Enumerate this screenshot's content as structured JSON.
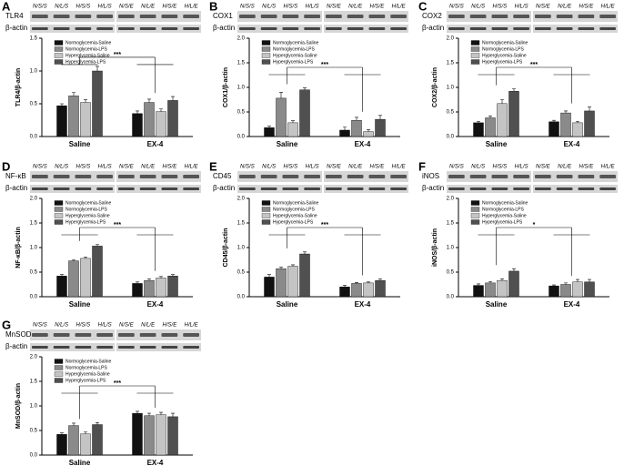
{
  "chart_data": [
    {
      "type": "bar",
      "label": "A",
      "blot_label": "TLR4",
      "loading_label": "β-actin",
      "lanes": [
        "N/S/S",
        "N/L/S",
        "H/S/S",
        "H/L/S",
        "N/S/E",
        "N/L/E",
        "H/S/E",
        "H/L/E"
      ],
      "y_label": "TLR4/β-actin",
      "categories": [
        "Saline",
        "EX-4"
      ],
      "ylim": [
        0,
        1.5
      ],
      "yticks": [
        {
          "value": 0,
          "label": "0.0"
        },
        {
          "value": 0.5,
          "label": "0.5"
        },
        {
          "value": 1,
          "label": "1.0"
        },
        {
          "value": 1.5,
          "label": "1.5"
        }
      ],
      "annotation": "***",
      "series": [
        {
          "name": "Normoglycemia-Saline",
          "color": "#111111",
          "values": [
            0.47,
            0.35
          ],
          "errors": [
            0.03,
            0.04
          ]
        },
        {
          "name": "Normoglycemia-LPS",
          "color": "#8a8a8a",
          "values": [
            0.62,
            0.52
          ],
          "errors": [
            0.05,
            0.05
          ]
        },
        {
          "name": "Hyperglycemia-Saline",
          "color": "#c4c4c4",
          "values": [
            0.52,
            0.38
          ],
          "errors": [
            0.04,
            0.04
          ]
        },
        {
          "name": "Hyperglycemia-LPS",
          "color": "#505050",
          "values": [
            1.0,
            0.55
          ],
          "errors": [
            0.07,
            0.06
          ]
        }
      ]
    },
    {
      "type": "bar",
      "label": "B",
      "blot_label": "COX1",
      "loading_label": "β-actin",
      "lanes": [
        "N/S/S",
        "N/L/S",
        "H/S/S",
        "H/L/S",
        "N/S/E",
        "N/L/E",
        "H/S/E",
        "H/L/E"
      ],
      "y_label": "COX1/β-actin",
      "categories": [
        "Saline",
        "EX-4"
      ],
      "ylim": [
        0,
        2
      ],
      "yticks": [
        {
          "value": 0,
          "label": "0.0"
        },
        {
          "value": 0.5,
          "label": "0.5"
        },
        {
          "value": 1,
          "label": "1.0"
        },
        {
          "value": 1.5,
          "label": "1.5"
        },
        {
          "value": 2,
          "label": "2.0"
        }
      ],
      "annotation": "***",
      "series": [
        {
          "name": "Normoglycemia-Saline",
          "color": "#111111",
          "values": [
            0.18,
            0.13
          ],
          "errors": [
            0.03,
            0.06
          ]
        },
        {
          "name": "Normoglycemia-LPS",
          "color": "#8a8a8a",
          "values": [
            0.78,
            0.33
          ],
          "errors": [
            0.12,
            0.06
          ]
        },
        {
          "name": "Hyperglycemia-Saline",
          "color": "#c4c4c4",
          "values": [
            0.28,
            0.1
          ],
          "errors": [
            0.04,
            0.04
          ]
        },
        {
          "name": "Hyperglycemia-LPS",
          "color": "#505050",
          "values": [
            0.95,
            0.35
          ],
          "errors": [
            0.04,
            0.08
          ]
        }
      ]
    },
    {
      "type": "bar",
      "label": "C",
      "blot_label": "COX2",
      "loading_label": "β-actin",
      "lanes": [
        "N/S/S",
        "N/L/S",
        "H/S/S",
        "H/L/S",
        "N/S/E",
        "N/L/E",
        "H/S/E",
        "H/L/E"
      ],
      "y_label": "COX2/β-actin",
      "categories": [
        "Saline",
        "EX-4"
      ],
      "ylim": [
        0,
        2
      ],
      "yticks": [
        {
          "value": 0,
          "label": "0.0"
        },
        {
          "value": 0.5,
          "label": "0.5"
        },
        {
          "value": 1,
          "label": "1.0"
        },
        {
          "value": 1.5,
          "label": "1.5"
        },
        {
          "value": 2,
          "label": "2.0"
        }
      ],
      "annotation": "***",
      "series": [
        {
          "name": "Normoglycemia-Saline",
          "color": "#111111",
          "values": [
            0.28,
            0.3
          ],
          "errors": [
            0.03,
            0.03
          ]
        },
        {
          "name": "Normoglycemia-LPS",
          "color": "#8a8a8a",
          "values": [
            0.38,
            0.48
          ],
          "errors": [
            0.04,
            0.04
          ]
        },
        {
          "name": "Hyperglycemia-Saline",
          "color": "#c4c4c4",
          "values": [
            0.67,
            0.28
          ],
          "errors": [
            0.08,
            0.03
          ]
        },
        {
          "name": "Hyperglycemia-LPS",
          "color": "#505050",
          "values": [
            0.92,
            0.52
          ],
          "errors": [
            0.05,
            0.08
          ]
        }
      ]
    },
    {
      "type": "bar",
      "label": "D",
      "blot_label": "NF-κB",
      "loading_label": "β-actin",
      "lanes": [
        "N/S/S",
        "N/L/S",
        "H/S/S",
        "H/L/S",
        "N/S/E",
        "N/L/E",
        "H/S/E",
        "H/L/E"
      ],
      "y_label": "NF-κB/β-actin",
      "categories": [
        "Saline",
        "EX-4"
      ],
      "ylim": [
        0,
        2
      ],
      "yticks": [
        {
          "value": 0,
          "label": "0.0"
        },
        {
          "value": 0.5,
          "label": "0.5"
        },
        {
          "value": 1,
          "label": "1.0"
        },
        {
          "value": 1.5,
          "label": "1.5"
        },
        {
          "value": 2,
          "label": "2.0"
        }
      ],
      "annotation": "***",
      "series": [
        {
          "name": "Normoglycemia-Saline",
          "color": "#111111",
          "values": [
            0.42,
            0.27
          ],
          "errors": [
            0.03,
            0.03
          ]
        },
        {
          "name": "Normoglycemia-LPS",
          "color": "#8a8a8a",
          "values": [
            0.73,
            0.33
          ],
          "errors": [
            0.02,
            0.03
          ]
        },
        {
          "name": "Hyperglycemia-Saline",
          "color": "#c4c4c4",
          "values": [
            0.78,
            0.38
          ],
          "errors": [
            0.03,
            0.03
          ]
        },
        {
          "name": "Hyperglycemia-LPS",
          "color": "#505050",
          "values": [
            1.03,
            0.42
          ],
          "errors": [
            0.03,
            0.03
          ]
        }
      ]
    },
    {
      "type": "bar",
      "label": "E",
      "blot_label": "CD45",
      "loading_label": "β-actin",
      "lanes": [
        "N/S/S",
        "N/L/S",
        "H/S/S",
        "H/L/S",
        "N/S/E",
        "N/L/E",
        "H/S/E",
        "H/L/E"
      ],
      "y_label": "CD45/β-actin",
      "categories": [
        "Saline",
        "EX-4"
      ],
      "ylim": [
        0,
        2
      ],
      "yticks": [
        {
          "value": 0,
          "label": "0.0"
        },
        {
          "value": 0.5,
          "label": "0.5"
        },
        {
          "value": 1,
          "label": "1.0"
        },
        {
          "value": 1.5,
          "label": "1.5"
        },
        {
          "value": 2,
          "label": "2.0"
        }
      ],
      "annotation": "***",
      "series": [
        {
          "name": "Normoglycemia-Saline",
          "color": "#111111",
          "values": [
            0.4,
            0.2
          ],
          "errors": [
            0.05,
            0.03
          ]
        },
        {
          "name": "Normoglycemia-LPS",
          "color": "#8a8a8a",
          "values": [
            0.57,
            0.27
          ],
          "errors": [
            0.03,
            0.02
          ]
        },
        {
          "name": "Hyperglycemia-Saline",
          "color": "#c4c4c4",
          "values": [
            0.62,
            0.28
          ],
          "errors": [
            0.03,
            0.02
          ]
        },
        {
          "name": "Hyperglycemia-LPS",
          "color": "#505050",
          "values": [
            0.87,
            0.33
          ],
          "errors": [
            0.04,
            0.03
          ]
        }
      ]
    },
    {
      "type": "bar",
      "label": "F",
      "blot_label": "iNOS",
      "loading_label": "β-actin",
      "lanes": [
        "N/S/S",
        "N/L/S",
        "H/S/S",
        "H/L/S",
        "N/S/E",
        "N/L/E",
        "H/S/E",
        "H/L/E"
      ],
      "y_label": "iNOS/β-actin",
      "categories": [
        "Saline",
        "EX-4"
      ],
      "ylim": [
        0,
        2
      ],
      "yticks": [
        {
          "value": 0,
          "label": "0.0"
        },
        {
          "value": 0.5,
          "label": "0.5"
        },
        {
          "value": 1,
          "label": "1.0"
        },
        {
          "value": 1.5,
          "label": "1.5"
        },
        {
          "value": 2,
          "label": "2.0"
        }
      ],
      "annotation": "*",
      "series": [
        {
          "name": "Normoglycemia-Saline",
          "color": "#111111",
          "values": [
            0.23,
            0.22
          ],
          "errors": [
            0.03,
            0.02
          ]
        },
        {
          "name": "Normoglycemia-LPS",
          "color": "#8a8a8a",
          "values": [
            0.28,
            0.25
          ],
          "errors": [
            0.03,
            0.03
          ]
        },
        {
          "name": "Hyperglycemia-Saline",
          "color": "#c4c4c4",
          "values": [
            0.33,
            0.3
          ],
          "errors": [
            0.03,
            0.05
          ]
        },
        {
          "name": "Hyperglycemia-LPS",
          "color": "#505050",
          "values": [
            0.52,
            0.3
          ],
          "errors": [
            0.05,
            0.05
          ]
        }
      ]
    },
    {
      "type": "bar",
      "label": "G",
      "blot_label": "MnSOD",
      "loading_label": "β-actin",
      "lanes": [
        "N/S/S",
        "N/L/S",
        "H/S/S",
        "H/L/S",
        "N/S/E",
        "N/L/E",
        "H/S/E",
        "H/L/E"
      ],
      "y_label": "MnSOD/β-actin",
      "categories": [
        "Saline",
        "EX-4"
      ],
      "ylim": [
        0,
        2
      ],
      "yticks": [
        {
          "value": 0,
          "label": "0.0"
        },
        {
          "value": 0.5,
          "label": "0.5"
        },
        {
          "value": 1,
          "label": "1.0"
        },
        {
          "value": 1.5,
          "label": "1.5"
        },
        {
          "value": 2,
          "label": "2.0"
        }
      ],
      "annotation": "***",
      "series": [
        {
          "name": "Normoglycemia-Saline",
          "color": "#111111",
          "values": [
            0.42,
            0.85
          ],
          "errors": [
            0.03,
            0.04
          ]
        },
        {
          "name": "Normoglycemia-LPS",
          "color": "#8a8a8a",
          "values": [
            0.6,
            0.8
          ],
          "errors": [
            0.05,
            0.05
          ]
        },
        {
          "name": "Hyperglycemia-Saline",
          "color": "#c4c4c4",
          "values": [
            0.43,
            0.82
          ],
          "errors": [
            0.04,
            0.05
          ]
        },
        {
          "name": "Hyperglycemia-LPS",
          "color": "#505050",
          "values": [
            0.62,
            0.78
          ],
          "errors": [
            0.04,
            0.07
          ]
        }
      ]
    }
  ]
}
